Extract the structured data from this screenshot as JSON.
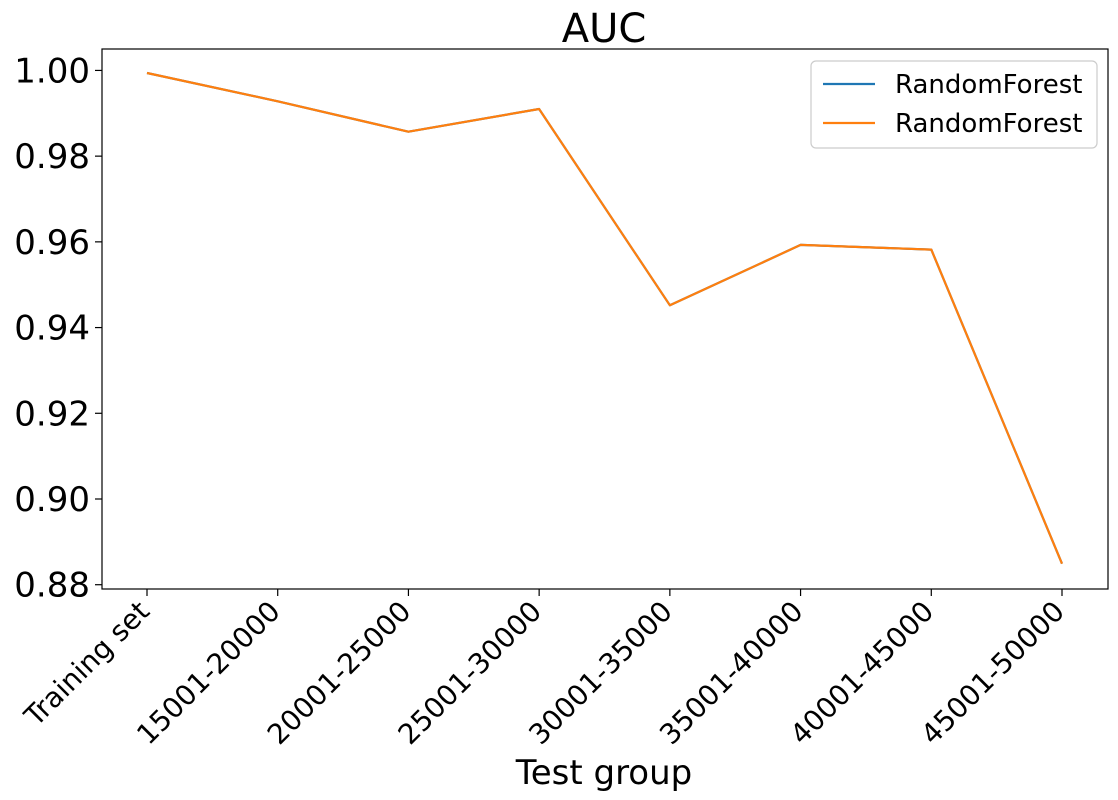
{
  "chart_data": {
    "type": "line",
    "title": "AUC",
    "xlabel": "Test group",
    "ylabel": "",
    "categories": [
      "Training set",
      "15001-20000",
      "20001-25000",
      "25001-30000",
      "30001-35000",
      "35001-40000",
      "40001-45000",
      "45001-50000"
    ],
    "ylim": [
      0.879,
      1.005
    ],
    "yticks": [
      0.88,
      0.9,
      0.92,
      0.94,
      0.96,
      0.98,
      1.0
    ],
    "ytick_labels": [
      "0.88",
      "0.90",
      "0.92",
      "0.94",
      "0.96",
      "0.98",
      "1.00"
    ],
    "grid": false,
    "legend_position": "top-right",
    "series": [
      {
        "name": "RandomForest",
        "color": "#1f77b4",
        "values": [
          0.9994,
          0.9928,
          0.9857,
          0.991,
          0.9452,
          0.9593,
          0.9582,
          0.8849
        ]
      },
      {
        "name": "RandomForest",
        "color": "#ff7f0e",
        "values": [
          0.9994,
          0.9928,
          0.9857,
          0.991,
          0.9452,
          0.9593,
          0.9582,
          0.8849
        ]
      }
    ]
  }
}
